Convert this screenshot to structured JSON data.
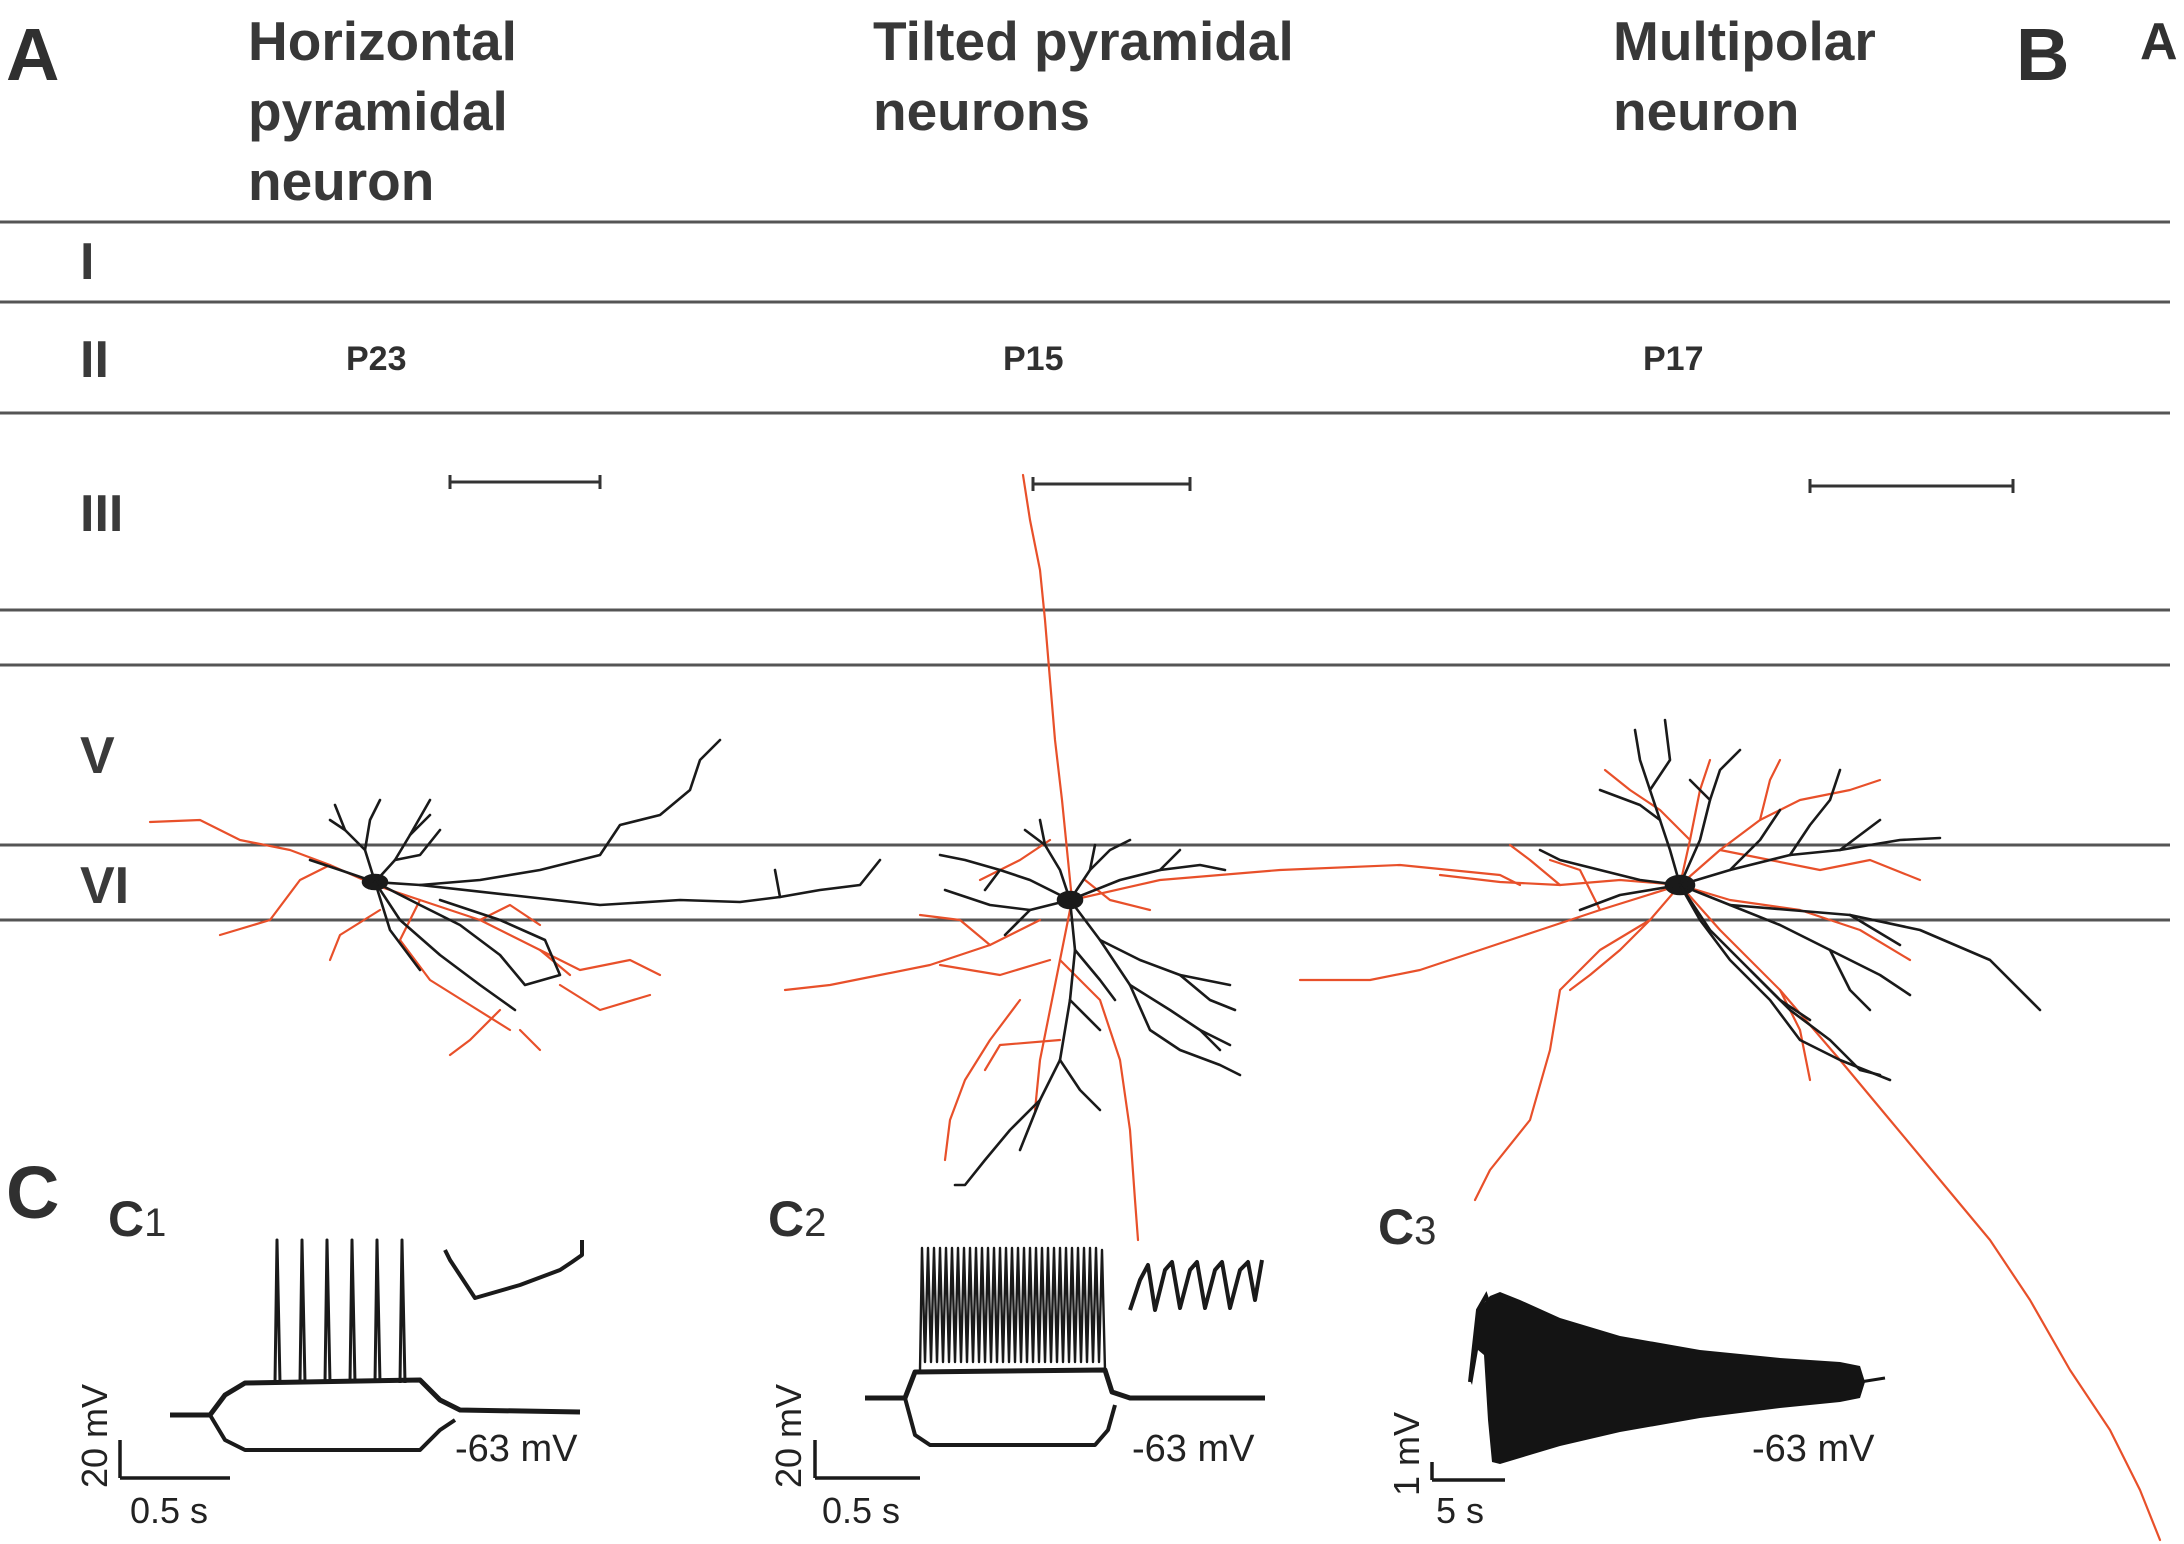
{
  "panels": {
    "A": "A",
    "B": "B",
    "B_edge": "A",
    "C": "C"
  },
  "columns": [
    {
      "title": [
        "Horizontal",
        "pyramidal",
        "neuron"
      ],
      "age": "P23"
    },
    {
      "title": [
        "Tilted pyramidal",
        "neurons"
      ],
      "age": "P15"
    },
    {
      "title": [
        "Multipolar",
        "neuron"
      ],
      "age": "P17"
    }
  ],
  "layers": [
    "I",
    "II",
    "III",
    "V",
    "VI"
  ],
  "recordings": [
    {
      "label": "C",
      "index": "1",
      "vscale": "20 mV",
      "tscale": "0.5 s",
      "vm": "-63 mV"
    },
    {
      "label": "C",
      "index": "2",
      "vscale": "20 mV",
      "tscale": "0.5 s",
      "vm": "-63 mV"
    },
    {
      "label": "C",
      "index": "3",
      "vscale": "1 mV",
      "tscale": "5 s",
      "vm": "-63 mV"
    }
  ],
  "colors": {
    "axon": "#e8502a",
    "dendrite": "#1a1a1a",
    "layer_line": "#555555"
  }
}
